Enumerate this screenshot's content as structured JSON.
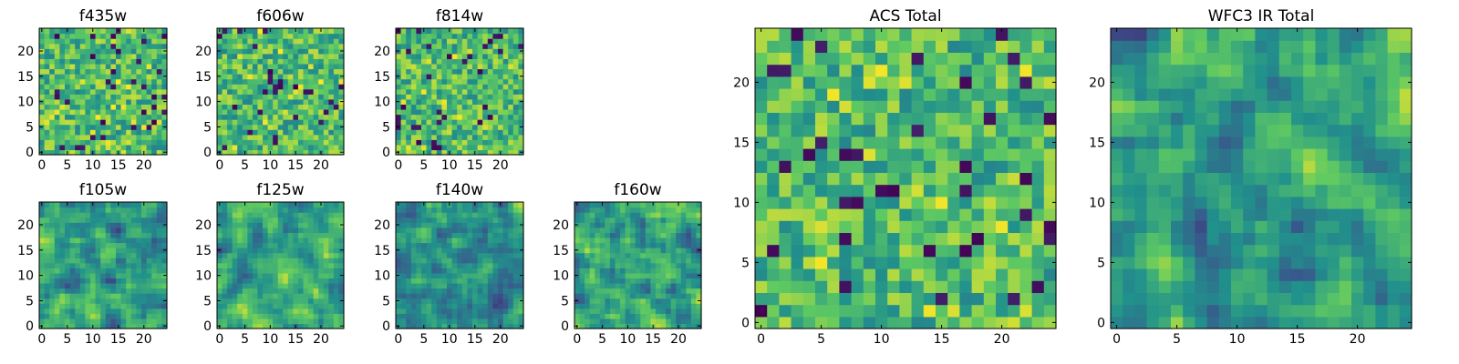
{
  "chart_data": [
    {
      "type": "heatmap",
      "title": "f435w",
      "xticks": [
        "0",
        "5",
        "10",
        "15",
        "20"
      ],
      "yticks": [
        "0",
        "5",
        "10",
        "15",
        "20"
      ],
      "size": 25,
      "pattern": "noise"
    },
    {
      "type": "heatmap",
      "title": "f606w",
      "xticks": [
        "0",
        "5",
        "10",
        "15",
        "20"
      ],
      "yticks": [
        "0",
        "5",
        "10",
        "15",
        "20"
      ],
      "size": 25,
      "pattern": "noise"
    },
    {
      "type": "heatmap",
      "title": "f814w",
      "xticks": [
        "0",
        "5",
        "10",
        "15",
        "20"
      ],
      "yticks": [
        "0",
        "5",
        "10",
        "15",
        "20"
      ],
      "size": 25,
      "pattern": "noise"
    },
    {
      "type": "heatmap",
      "title": "f105w",
      "xticks": [
        "0",
        "5",
        "10",
        "15",
        "20"
      ],
      "yticks": [
        "0",
        "5",
        "10",
        "15",
        "20"
      ],
      "size": 25,
      "pattern": "smooth"
    },
    {
      "type": "heatmap",
      "title": "f125w",
      "xticks": [
        "0",
        "5",
        "10",
        "15",
        "20"
      ],
      "yticks": [
        "0",
        "5",
        "10",
        "15",
        "20"
      ],
      "size": 25,
      "pattern": "smooth"
    },
    {
      "type": "heatmap",
      "title": "f140w",
      "xticks": [
        "0",
        "5",
        "10",
        "15",
        "20"
      ],
      "yticks": [
        "0",
        "5",
        "10",
        "15",
        "20"
      ],
      "size": 25,
      "pattern": "smooth"
    },
    {
      "type": "heatmap",
      "title": "f160w",
      "xticks": [
        "0",
        "5",
        "10",
        "15",
        "20"
      ],
      "yticks": [
        "0",
        "5",
        "10",
        "15",
        "20"
      ],
      "size": 25,
      "pattern": "smooth"
    },
    {
      "type": "heatmap",
      "title": "ACS Total",
      "xticks": [
        "0",
        "5",
        "10",
        "15",
        "20"
      ],
      "yticks": [
        "0",
        "5",
        "10",
        "15",
        "20"
      ],
      "size": 25,
      "pattern": "noise"
    },
    {
      "type": "heatmap",
      "title": "WFC3 IR Total",
      "xticks": [
        "0",
        "5",
        "10",
        "15",
        "20"
      ],
      "yticks": [
        "0",
        "5",
        "10",
        "15",
        "20"
      ],
      "size": 25,
      "pattern": "smooth"
    }
  ],
  "colormap": [
    "#440154",
    "#3b528b",
    "#21918c",
    "#5ec962",
    "#fde725"
  ]
}
